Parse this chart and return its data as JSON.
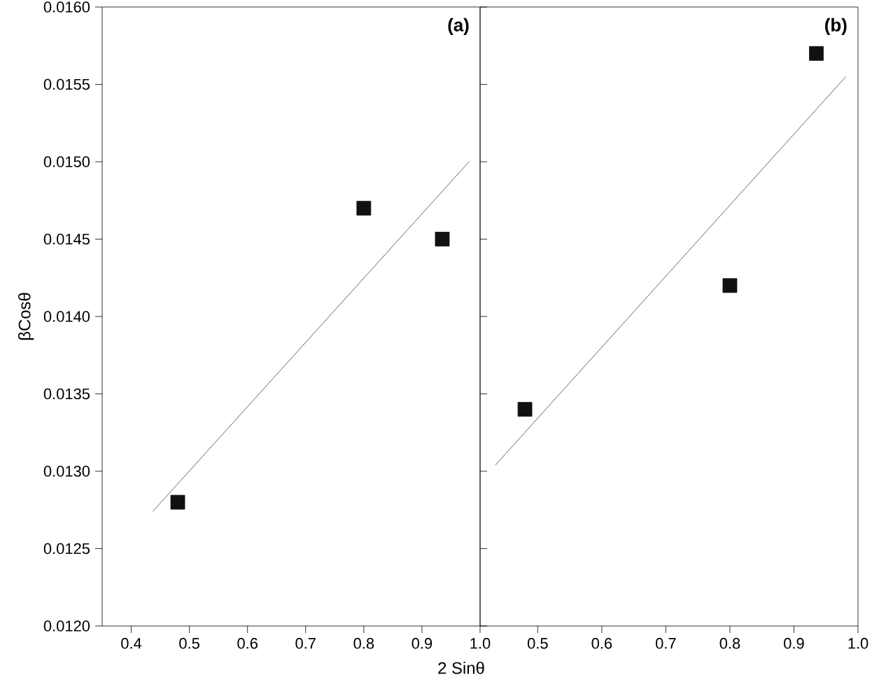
{
  "chart_data": [
    {
      "type": "scatter",
      "title": "(a)",
      "xlabel": "2 Sinθ",
      "ylabel": "βCosθ",
      "xlim": [
        0.35,
        1.0
      ],
      "xticks": [
        0.4,
        0.5,
        0.6,
        0.7,
        0.8,
        0.9,
        {
          "value": 1.0,
          "label": "1.0"
        }
      ],
      "ylim": [
        0.012,
        0.016
      ],
      "yticks": [
        {
          "value": 0.012,
          "label": "0.0120"
        },
        {
          "value": 0.0125,
          "label": "0.0125"
        },
        {
          "value": 0.013,
          "label": "0.0130"
        },
        {
          "value": 0.0135,
          "label": "0.0135"
        },
        {
          "value": 0.014,
          "label": "0.0140"
        },
        {
          "value": 0.0145,
          "label": "0.0145"
        },
        {
          "value": 0.015,
          "label": "0.0150"
        },
        {
          "value": 0.0155,
          "label": "0.0155"
        },
        {
          "value": 0.016,
          "label": "0.0160"
        }
      ],
      "series": [
        {
          "marker": "square",
          "color": "#111111",
          "x": [
            0.48,
            0.8,
            0.935
          ],
          "values": [
            0.0128,
            0.0147,
            0.0145
          ]
        },
        {
          "type": "line",
          "color": "#444444",
          "x": [
            0.437,
            0.981
          ],
          "values": [
            0.01274,
            0.015
          ]
        }
      ]
    },
    {
      "type": "scatter",
      "title": "(b)",
      "xlim": [
        0.41,
        1.0
      ],
      "xticks": [
        0.5,
        0.6,
        0.7,
        0.8,
        0.9,
        {
          "value": 1.0,
          "label": "1.0"
        }
      ],
      "ylim": [
        0.012,
        0.016
      ],
      "yticks": [
        0.012,
        0.0125,
        0.013,
        0.0135,
        0.014,
        0.0145,
        0.015,
        0.0155,
        0.016
      ],
      "tick_labels": "x",
      "series": [
        {
          "marker": "square",
          "color": "#111111",
          "x": [
            0.48,
            0.8,
            0.935
          ],
          "values": [
            0.0134,
            0.0142,
            0.0157
          ]
        },
        {
          "type": "line",
          "color": "#444444",
          "x": [
            0.434,
            0.981
          ],
          "values": [
            0.01304,
            0.01555
          ]
        }
      ]
    }
  ]
}
